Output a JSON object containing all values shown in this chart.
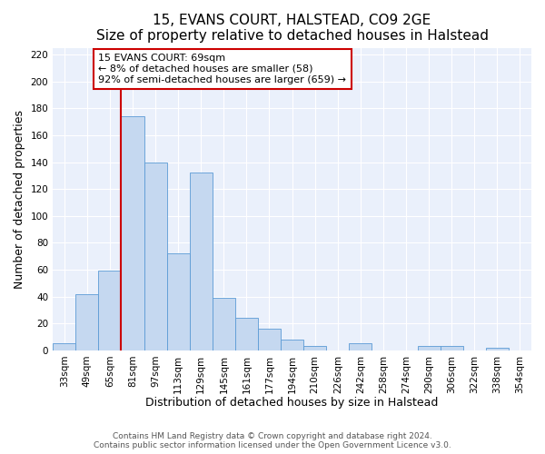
{
  "title": "15, EVANS COURT, HALSTEAD, CO9 2GE",
  "subtitle": "Size of property relative to detached houses in Halstead",
  "xlabel": "Distribution of detached houses by size in Halstead",
  "ylabel": "Number of detached properties",
  "bin_labels": [
    "33sqm",
    "49sqm",
    "65sqm",
    "81sqm",
    "97sqm",
    "113sqm",
    "129sqm",
    "145sqm",
    "161sqm",
    "177sqm",
    "194sqm",
    "210sqm",
    "226sqm",
    "242sqm",
    "258sqm",
    "274sqm",
    "290sqm",
    "306sqm",
    "322sqm",
    "338sqm",
    "354sqm"
  ],
  "bar_heights": [
    5,
    42,
    59,
    174,
    140,
    72,
    132,
    39,
    24,
    16,
    8,
    3,
    0,
    5,
    0,
    0,
    3,
    3,
    0,
    2,
    0
  ],
  "bar_color": "#c5d8f0",
  "bar_edge_color": "#5b9bd5",
  "vline_color": "#cc0000",
  "vline_x_index": 2,
  "annotation_title": "15 EVANS COURT: 69sqm",
  "annotation_line1": "← 8% of detached houses are smaller (58)",
  "annotation_line2": "92% of semi-detached houses are larger (659) →",
  "annotation_box_color": "#ffffff",
  "annotation_box_edge": "#cc0000",
  "ylim": [
    0,
    225
  ],
  "yticks": [
    0,
    20,
    40,
    60,
    80,
    100,
    120,
    140,
    160,
    180,
    200,
    220
  ],
  "footer1": "Contains HM Land Registry data © Crown copyright and database right 2024.",
  "footer2": "Contains public sector information licensed under the Open Government Licence v3.0.",
  "bg_color": "#eaf0fb",
  "fig_bg_color": "#ffffff",
  "title_fontsize": 11,
  "axis_label_fontsize": 9,
  "tick_fontsize": 7.5,
  "annotation_fontsize": 8,
  "footer_fontsize": 6.5
}
